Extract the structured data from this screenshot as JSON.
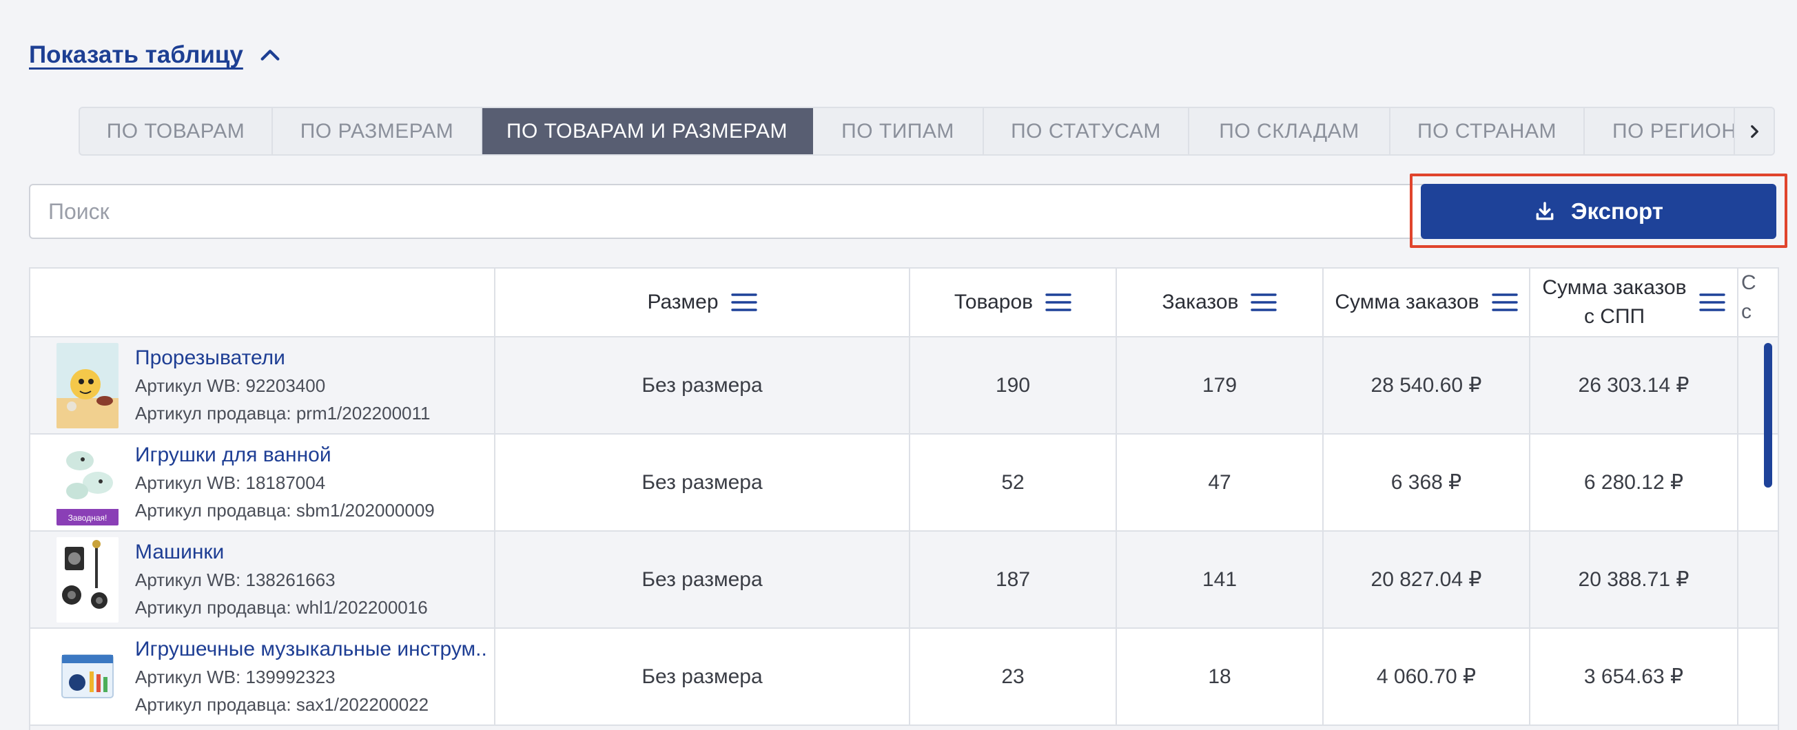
{
  "toggle": {
    "label": "Показать таблицу"
  },
  "tabs": [
    {
      "label": "ПО ТОВАРАМ",
      "active": false
    },
    {
      "label": "ПО РАЗМЕРАМ",
      "active": false
    },
    {
      "label": "ПО ТОВАРАМ И РАЗМЕРАМ",
      "active": true
    },
    {
      "label": "ПО ТИПАМ",
      "active": false
    },
    {
      "label": "ПО СТАТУСАМ",
      "active": false
    },
    {
      "label": "ПО СКЛАДАМ",
      "active": false
    },
    {
      "label": "ПО СТРАНАМ",
      "active": false
    },
    {
      "label": "ПО РЕГИОНАМ",
      "active": false
    }
  ],
  "search": {
    "placeholder": "Поиск",
    "value": ""
  },
  "export": {
    "label": "Экспорт"
  },
  "table": {
    "headers": {
      "size": "Размер",
      "goods": "Товаров",
      "orders": "Заказов",
      "sum": "Сумма заказов",
      "sum_spp_1": "Сумма заказов",
      "sum_spp_2": "с СПП",
      "clip_1": "С",
      "clip_2": "с"
    },
    "rows": [
      {
        "name": "Прорезыватели",
        "wb": "Артикул WB: 92203400",
        "seller": "Артикул продавца: prm1/202200011",
        "size": "Без размера",
        "goods": "190",
        "orders": "179",
        "sum": "28 540.60 ₽",
        "sum_spp": "26 303.14 ₽"
      },
      {
        "name": "Игрушки для ванной",
        "wb": "Артикул WB: 18187004",
        "seller": "Артикул продавца: sbm1/202000009",
        "size": "Без размера",
        "goods": "52",
        "orders": "47",
        "sum": "6 368 ₽",
        "sum_spp": "6 280.12 ₽",
        "thumb_label": "Заводная!"
      },
      {
        "name": "Машинки",
        "wb": "Артикул WB: 138261663",
        "seller": "Артикул продавца: whl1/202200016",
        "size": "Без размера",
        "goods": "187",
        "orders": "141",
        "sum": "20 827.04 ₽",
        "sum_spp": "20 388.71 ₽"
      },
      {
        "name": "Игрушечные музыкальные инструм..",
        "wb": "Артикул WB: 139992323",
        "seller": "Артикул продавца: sax1/202200022",
        "size": "Без размера",
        "goods": "23",
        "orders": "18",
        "sum": "4 060.70 ₽",
        "sum_spp": "3 654.63 ₽"
      }
    ]
  },
  "colors": {
    "accent": "#1e4299",
    "link": "#1e3e94",
    "active_tab": "#585e72",
    "highlight": "#e0442c"
  }
}
